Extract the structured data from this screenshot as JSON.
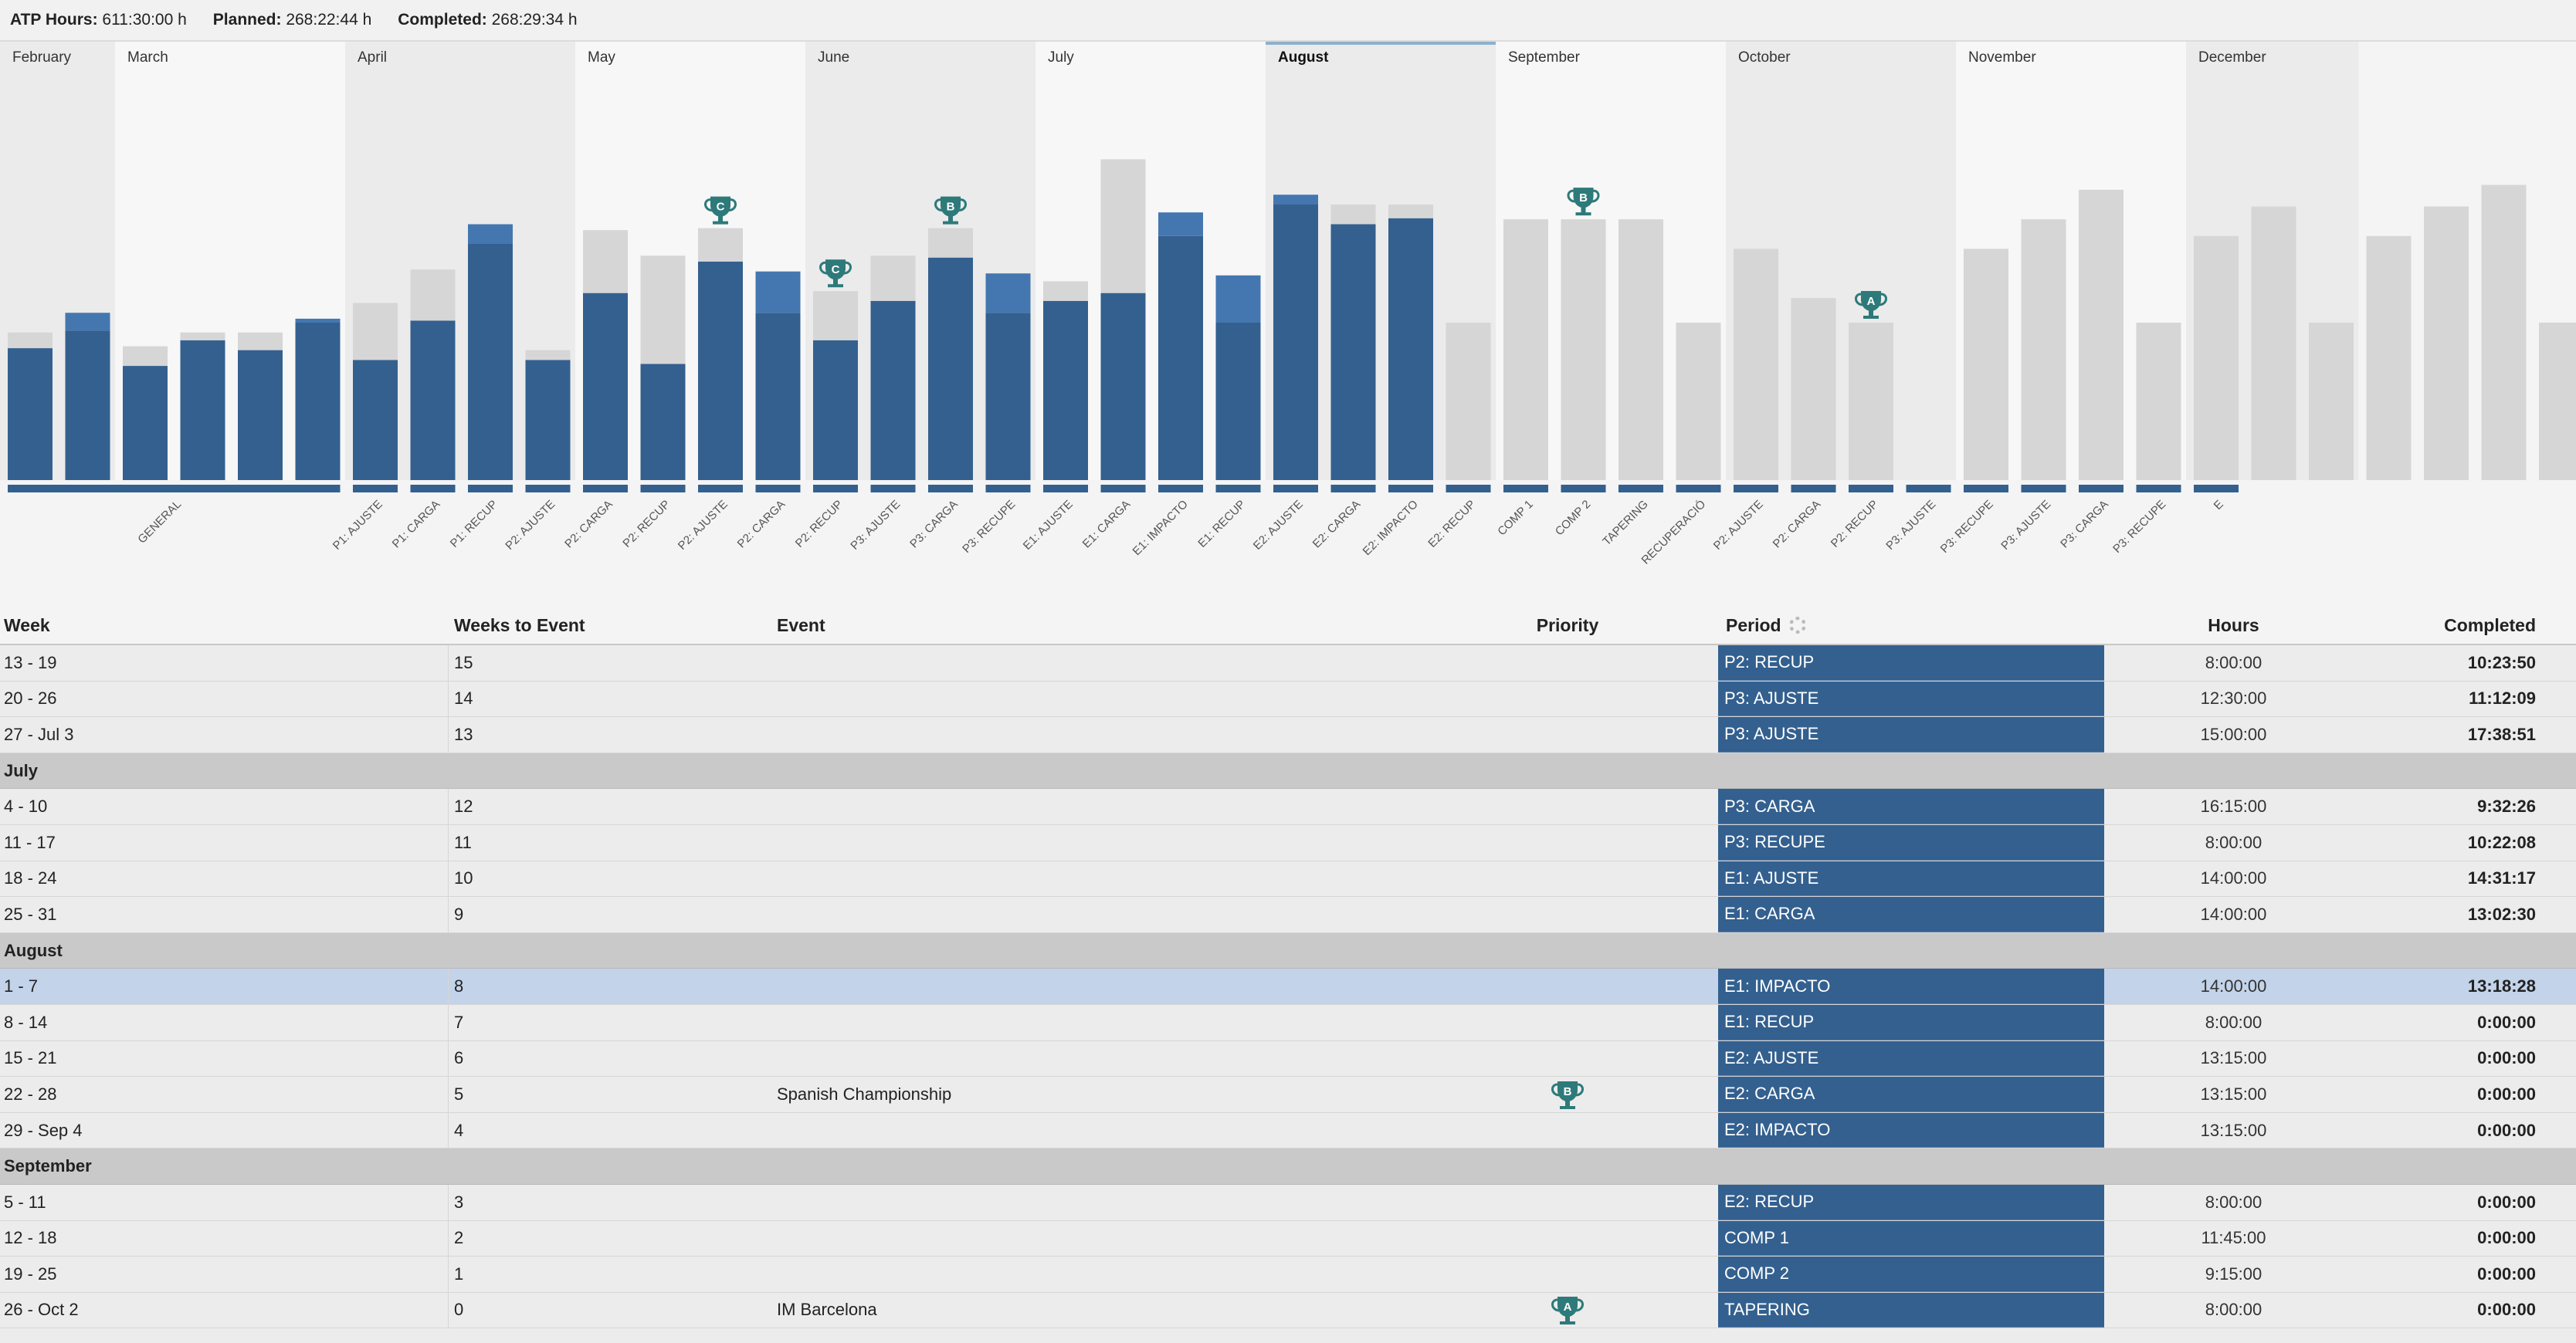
{
  "header": {
    "atp_label": "ATP Hours:",
    "atp_value": "611:30:00 h",
    "planned_label": "Planned:",
    "planned_value": "268:22:44 h",
    "completed_label": "Completed:",
    "completed_value": "268:29:34 h"
  },
  "colors": {
    "completed_bar": "#33608f",
    "over_bar": "#4477b0",
    "planned_bar": "#d6d6d6",
    "trophy": "#2e7a7a"
  },
  "timeline": {
    "months": [
      {
        "label": "February",
        "weeks": 2,
        "shade": true
      },
      {
        "label": "March",
        "weeks": 4,
        "shade": false
      },
      {
        "label": "April",
        "weeks": 4,
        "shade": true
      },
      {
        "label": "May",
        "weeks": 4,
        "shade": false
      },
      {
        "label": "June",
        "weeks": 4,
        "shade": true
      },
      {
        "label": "July",
        "weeks": 4,
        "shade": false
      },
      {
        "label": "August",
        "weeks": 4,
        "shade": true,
        "active": true
      },
      {
        "label": "September",
        "weeks": 4,
        "shade": false
      },
      {
        "label": "October",
        "weeks": 4,
        "shade": true
      },
      {
        "label": "November",
        "weeks": 4,
        "shade": false
      },
      {
        "label": "December",
        "weeks": 3,
        "shade": true
      }
    ],
    "periods": [
      {
        "label": "GENERAL",
        "weeks": 6
      },
      {
        "label": "P1: AJUSTE",
        "weeks": 1
      },
      {
        "label": "P1: CARGA",
        "weeks": 1
      },
      {
        "label": "P1: RECUP",
        "weeks": 1
      },
      {
        "label": "P2: AJUSTE",
        "weeks": 1
      },
      {
        "label": "P2: CARGA",
        "weeks": 1
      },
      {
        "label": "P2: RECUP",
        "weeks": 1
      },
      {
        "label": "P2: AJUSTE",
        "weeks": 1
      },
      {
        "label": "P2: CARGA",
        "weeks": 1
      },
      {
        "label": "P2: RECUP",
        "weeks": 1
      },
      {
        "label": "P3: AJUSTE",
        "weeks": 1
      },
      {
        "label": "P3: CARGA",
        "weeks": 1
      },
      {
        "label": "P3: RECUPE",
        "weeks": 1
      },
      {
        "label": "E1: AJUSTE",
        "weeks": 1
      },
      {
        "label": "E1: CARGA",
        "weeks": 1
      },
      {
        "label": "E1: IMPACTO",
        "weeks": 1
      },
      {
        "label": "E1: RECUP",
        "weeks": 1
      },
      {
        "label": "E2: AJUSTE",
        "weeks": 1
      },
      {
        "label": "E2: CARGA",
        "weeks": 1
      },
      {
        "label": "E2: IMPACTO",
        "weeks": 1
      },
      {
        "label": "E2: RECUP",
        "weeks": 1
      },
      {
        "label": "COMP 1",
        "weeks": 1
      },
      {
        "label": "COMP 2",
        "weeks": 1
      },
      {
        "label": "TAPERING",
        "weeks": 1
      },
      {
        "label": "RECUPERACIÓ",
        "weeks": 1
      },
      {
        "label": "P2: AJUSTE",
        "weeks": 1
      },
      {
        "label": "P2: CARGA",
        "weeks": 1
      },
      {
        "label": "P2: RECUP",
        "weeks": 1
      },
      {
        "label": "P3: AJUSTE",
        "weeks": 1
      },
      {
        "label": "P3: RECUPE",
        "weeks": 1
      },
      {
        "label": "P3: AJUSTE",
        "weeks": 1
      },
      {
        "label": "P3: CARGA",
        "weeks": 1
      },
      {
        "label": "P3: RECUPE",
        "weeks": 1
      },
      {
        "label": "E",
        "weeks": 1
      }
    ],
    "weeks": [
      {
        "planned": 7.5,
        "completed": 6.7
      },
      {
        "planned": 7.6,
        "completed": 8.5
      },
      {
        "planned": 6.8,
        "completed": 5.8
      },
      {
        "planned": 7.5,
        "completed": 7.1
      },
      {
        "planned": 7.5,
        "completed": 6.6
      },
      {
        "planned": 8.0,
        "completed": 8.2
      },
      {
        "planned": 9.0,
        "completed": 6.1
      },
      {
        "planned": 10.7,
        "completed": 8.1
      },
      {
        "planned": 12.0,
        "completed": 13.0
      },
      {
        "planned": 6.6,
        "completed": 6.1
      },
      {
        "planned": 12.7,
        "completed": 9.5
      },
      {
        "planned": 11.4,
        "completed": 5.9
      },
      {
        "planned": 12.8,
        "completed": 11.1
      },
      {
        "planned": 8.5,
        "completed": 10.6
      },
      {
        "planned": 9.6,
        "completed": 7.1
      },
      {
        "planned": 11.4,
        "completed": 9.1
      },
      {
        "planned": 12.8,
        "completed": 11.3
      },
      {
        "planned": 8.5,
        "completed": 10.5
      },
      {
        "planned": 10.1,
        "completed": 9.1
      },
      {
        "planned": 16.3,
        "completed": 9.5
      },
      {
        "planned": 12.4,
        "completed": 13.6
      },
      {
        "planned": 8.0,
        "completed": 10.4
      },
      {
        "planned": 14.0,
        "completed": 14.5
      },
      {
        "planned": 14.0,
        "completed": 13.0
      },
      {
        "planned": 14.0,
        "completed": 13.3
      },
      {
        "planned": 8.0,
        "completed": 0
      },
      {
        "planned": 13.25,
        "completed": 0
      },
      {
        "planned": 13.25,
        "completed": 0
      },
      {
        "planned": 13.25,
        "completed": 0
      },
      {
        "planned": 8.0,
        "completed": 0
      },
      {
        "planned": 11.75,
        "completed": 0
      },
      {
        "planned": 9.25,
        "completed": 0
      },
      {
        "planned": 8.0,
        "completed": 0
      },
      {
        "planned": 0,
        "completed": 0
      },
      {
        "planned": 11.75,
        "completed": 0
      },
      {
        "planned": 13.25,
        "completed": 0
      },
      {
        "planned": 14.75,
        "completed": 0
      },
      {
        "planned": 8.0,
        "completed": 0
      },
      {
        "planned": 12.4,
        "completed": 0
      },
      {
        "planned": 13.9,
        "completed": 0
      },
      {
        "planned": 8.0,
        "completed": 0
      },
      {
        "planned": 12.4,
        "completed": 0
      },
      {
        "planned": 13.9,
        "completed": 0
      },
      {
        "planned": 15.0,
        "completed": 0
      },
      {
        "planned": 8.0,
        "completed": 0
      }
    ],
    "events": [
      {
        "week_index": 12,
        "priority": "C"
      },
      {
        "week_index": 14,
        "priority": "C"
      },
      {
        "week_index": 16,
        "priority": "B"
      },
      {
        "week_index": 27,
        "priority": "B"
      },
      {
        "week_index": 32,
        "priority": "A"
      }
    ]
  },
  "table": {
    "columns": {
      "week": "Week",
      "weeks_to_event": "Weeks to Event",
      "event": "Event",
      "priority": "Priority",
      "period": "Period",
      "hours": "Hours",
      "completed": "Completed"
    },
    "rows": [
      {
        "type": "week",
        "week": "13 - 19",
        "weeks_to_event": "15",
        "event": "",
        "priority": "",
        "period": "P2: RECUP",
        "hours": "8:00:00",
        "completed": "10:23:50"
      },
      {
        "type": "week",
        "week": "20 - 26",
        "weeks_to_event": "14",
        "event": "",
        "priority": "",
        "period": "P3: AJUSTE",
        "hours": "12:30:00",
        "completed": "11:12:09"
      },
      {
        "type": "week",
        "week": "27 - Jul 3",
        "weeks_to_event": "13",
        "event": "",
        "priority": "",
        "period": "P3: AJUSTE",
        "hours": "15:00:00",
        "completed": "17:38:51"
      },
      {
        "type": "month",
        "label": "July"
      },
      {
        "type": "week",
        "week": "4 - 10",
        "weeks_to_event": "12",
        "event": "",
        "priority": "",
        "period": "P3: CARGA",
        "hours": "16:15:00",
        "completed": "9:32:26"
      },
      {
        "type": "week",
        "week": "11 - 17",
        "weeks_to_event": "11",
        "event": "",
        "priority": "",
        "period": "P3: RECUPE",
        "hours": "8:00:00",
        "completed": "10:22:08"
      },
      {
        "type": "week",
        "week": "18 - 24",
        "weeks_to_event": "10",
        "event": "",
        "priority": "",
        "period": "E1: AJUSTE",
        "hours": "14:00:00",
        "completed": "14:31:17"
      },
      {
        "type": "week",
        "week": "25 - 31",
        "weeks_to_event": "9",
        "event": "",
        "priority": "",
        "period": "E1: CARGA",
        "hours": "14:00:00",
        "completed": "13:02:30"
      },
      {
        "type": "month",
        "label": "August"
      },
      {
        "type": "week",
        "week": "1 - 7",
        "weeks_to_event": "8",
        "event": "",
        "priority": "",
        "period": "E1: IMPACTO",
        "hours": "14:00:00",
        "completed": "13:18:28",
        "selected": true
      },
      {
        "type": "week",
        "week": "8 - 14",
        "weeks_to_event": "7",
        "event": "",
        "priority": "",
        "period": "E1: RECUP",
        "hours": "8:00:00",
        "completed": "0:00:00"
      },
      {
        "type": "week",
        "week": "15 - 21",
        "weeks_to_event": "6",
        "event": "",
        "priority": "",
        "period": "E2: AJUSTE",
        "hours": "13:15:00",
        "completed": "0:00:00"
      },
      {
        "type": "week",
        "week": "22 - 28",
        "weeks_to_event": "5",
        "event": "Spanish Championship",
        "priority": "B",
        "period": "E2: CARGA",
        "hours": "13:15:00",
        "completed": "0:00:00"
      },
      {
        "type": "week",
        "week": "29 - Sep 4",
        "weeks_to_event": "4",
        "event": "",
        "priority": "",
        "period": "E2: IMPACTO",
        "hours": "13:15:00",
        "completed": "0:00:00"
      },
      {
        "type": "month",
        "label": "September"
      },
      {
        "type": "week",
        "week": "5 - 11",
        "weeks_to_event": "3",
        "event": "",
        "priority": "",
        "period": "E2: RECUP",
        "hours": "8:00:00",
        "completed": "0:00:00"
      },
      {
        "type": "week",
        "week": "12 - 18",
        "weeks_to_event": "2",
        "event": "",
        "priority": "",
        "period": "COMP 1",
        "hours": "11:45:00",
        "completed": "0:00:00"
      },
      {
        "type": "week",
        "week": "19 - 25",
        "weeks_to_event": "1",
        "event": "",
        "priority": "",
        "period": "COMP 2",
        "hours": "9:15:00",
        "completed": "0:00:00"
      },
      {
        "type": "week",
        "week": "26 - Oct 2",
        "weeks_to_event": "0",
        "event": "IM Barcelona",
        "priority": "A",
        "period": "TAPERING",
        "hours": "8:00:00",
        "completed": "0:00:00"
      }
    ]
  }
}
